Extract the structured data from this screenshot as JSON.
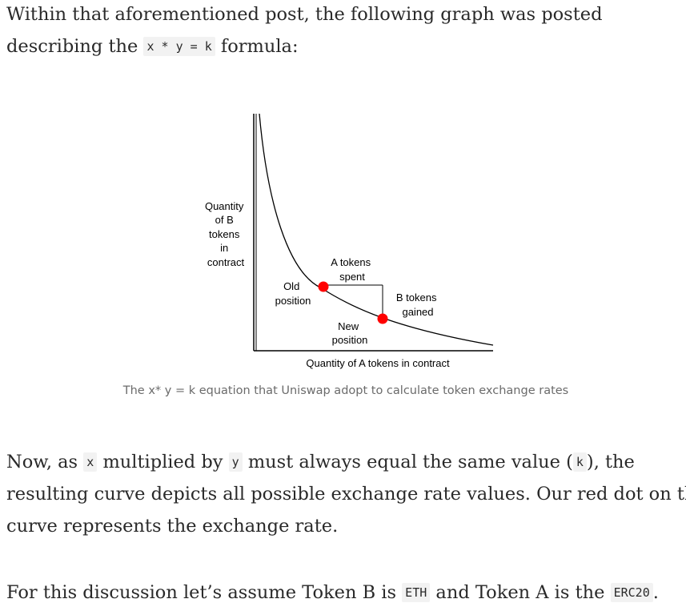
{
  "intro": {
    "line1": "Within that aforementioned post, the following graph was posted",
    "line2_prefix": "describing the",
    "formula": "x * y = k",
    "line2_suffix": "formula:"
  },
  "figure": {
    "ylabel_lines": [
      "Quantity",
      "of B",
      "tokens",
      "in",
      "contract"
    ],
    "xlabel": "Quantity of A tokens in contract",
    "old_position_lines": [
      "Old",
      "position"
    ],
    "new_position_lines": [
      "New",
      "position"
    ],
    "a_tokens_spent_lines": [
      "A tokens",
      "spent"
    ],
    "b_tokens_gained_lines": [
      "B tokens",
      "gained"
    ],
    "dot_color": "#ff0000"
  },
  "caption": "The x* y = k equation that Uniswap adopt to calculate token exchange rates",
  "para2": {
    "line1_prefix": "Now, as",
    "code_x": "x",
    "line1_mid1": "multiplied by",
    "code_y": "y",
    "line1_mid2": "must always equal the same value (",
    "code_k": "k",
    "line1_suffix": "), the",
    "line2": "resulting curve depicts all possible exchange rate values. Our red dot on the",
    "line3": "curve represents the exchange rate."
  },
  "para3": {
    "prefix": "For this discussion let’s assume Token B is",
    "code_eth": "ETH",
    "mid": "and Token A is the",
    "code_erc20": "ERC20",
    "suffix": "."
  }
}
